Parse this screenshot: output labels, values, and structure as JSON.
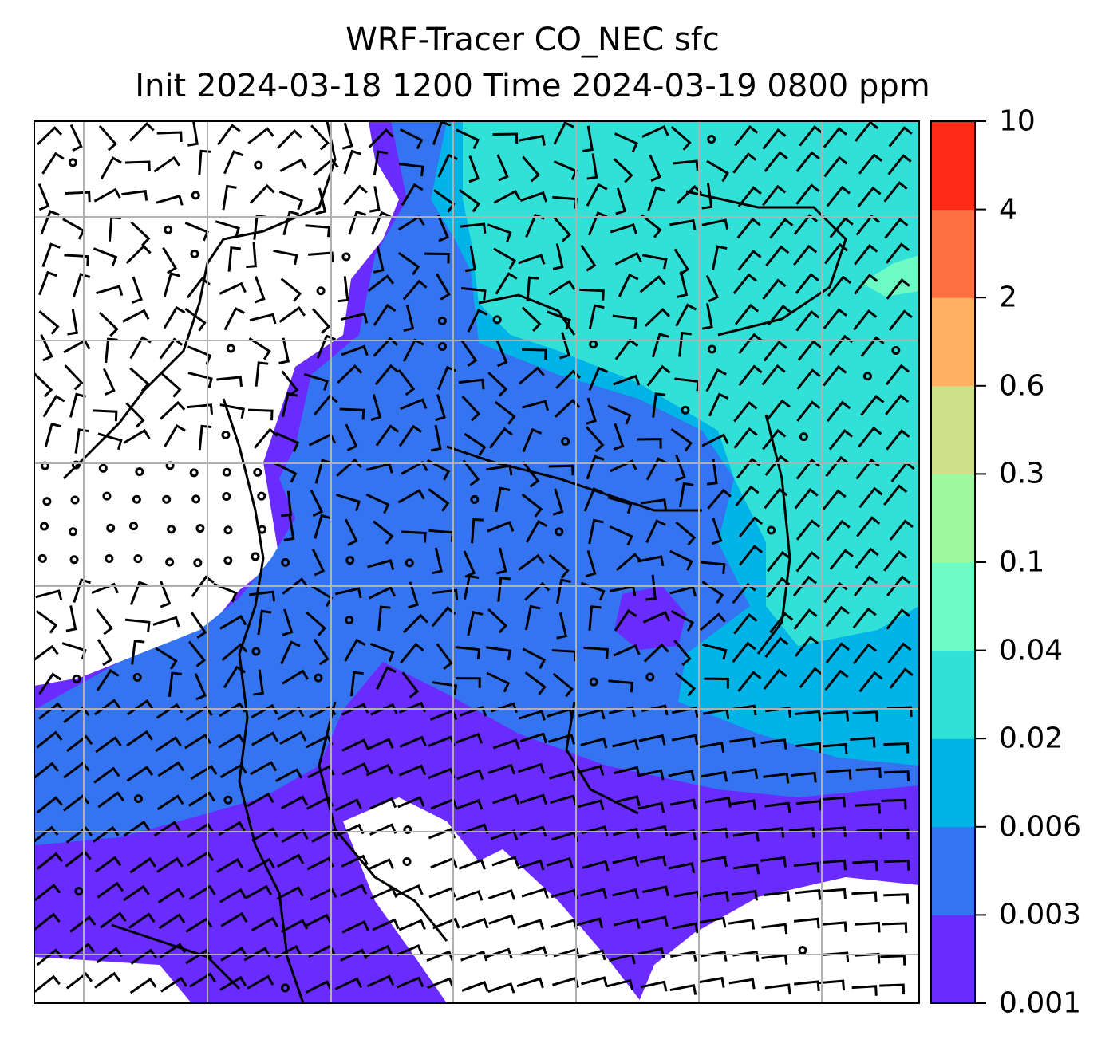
{
  "title": {
    "line1": "WRF-Tracer CO_NEC sfc",
    "line2": "Init 2024-03-18 1200 Time 2024-03-19 0800 ppm"
  },
  "colorbar": {
    "levels": [
      "0.001",
      "0.003",
      "0.006",
      "0.02",
      "0.04",
      "0.1",
      "0.3",
      "0.6",
      "2",
      "4",
      "10"
    ],
    "colors": [
      "#6a2bff",
      "#3574f0",
      "#00b4e8",
      "#31e1d8",
      "#6cfbc2",
      "#9cf99e",
      "#cfe08a",
      "#ffb060",
      "#ff7040",
      "#ff2a16"
    ]
  },
  "map": {
    "background": "#ffffff",
    "gridline_color": "#b0b0b0"
  }
}
